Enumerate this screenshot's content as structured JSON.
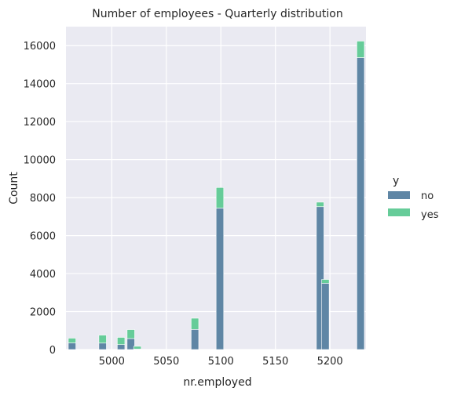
{
  "chart_data": {
    "type": "bar",
    "stacked": true,
    "title": "Number of employees - Quarterly distribution",
    "xlabel": "nr.employed",
    "ylabel": "Count",
    "xlim": [
      4958,
      5233
    ],
    "ylim": [
      0,
      17000
    ],
    "xticks": [
      5000,
      5050,
      5100,
      5150,
      5200
    ],
    "yticks": [
      0,
      2000,
      4000,
      6000,
      8000,
      10000,
      12000,
      14000,
      16000
    ],
    "grid": true,
    "legend_position": "right",
    "legend_title": "y",
    "series_order": [
      "no",
      "yes"
    ],
    "colors": {
      "no": "#5f86a5",
      "yes": "#66cc99",
      "background": "#eaeaf2",
      "grid": "#ffffff"
    },
    "bins": [
      {
        "x": 4963.6,
        "no": 350,
        "yes": 250
      },
      {
        "x": 4991.6,
        "no": 340,
        "yes": 420
      },
      {
        "x": 5008.5,
        "no": 260,
        "yes": 380
      },
      {
        "x": 5017.5,
        "no": 580,
        "yes": 470
      },
      {
        "x": 5023.5,
        "no": 30,
        "yes": 140
      },
      {
        "x": 5076.2,
        "no": 1060,
        "yes": 590
      },
      {
        "x": 5099.1,
        "no": 7450,
        "yes": 1080
      },
      {
        "x": 5191.0,
        "no": 7520,
        "yes": 240
      },
      {
        "x": 5195.8,
        "no": 3490,
        "yes": 200
      },
      {
        "x": 5228.1,
        "no": 15370,
        "yes": 870
      }
    ],
    "bin_width": 6.9,
    "series": [
      {
        "name": "no"
      },
      {
        "name": "yes"
      }
    ]
  }
}
